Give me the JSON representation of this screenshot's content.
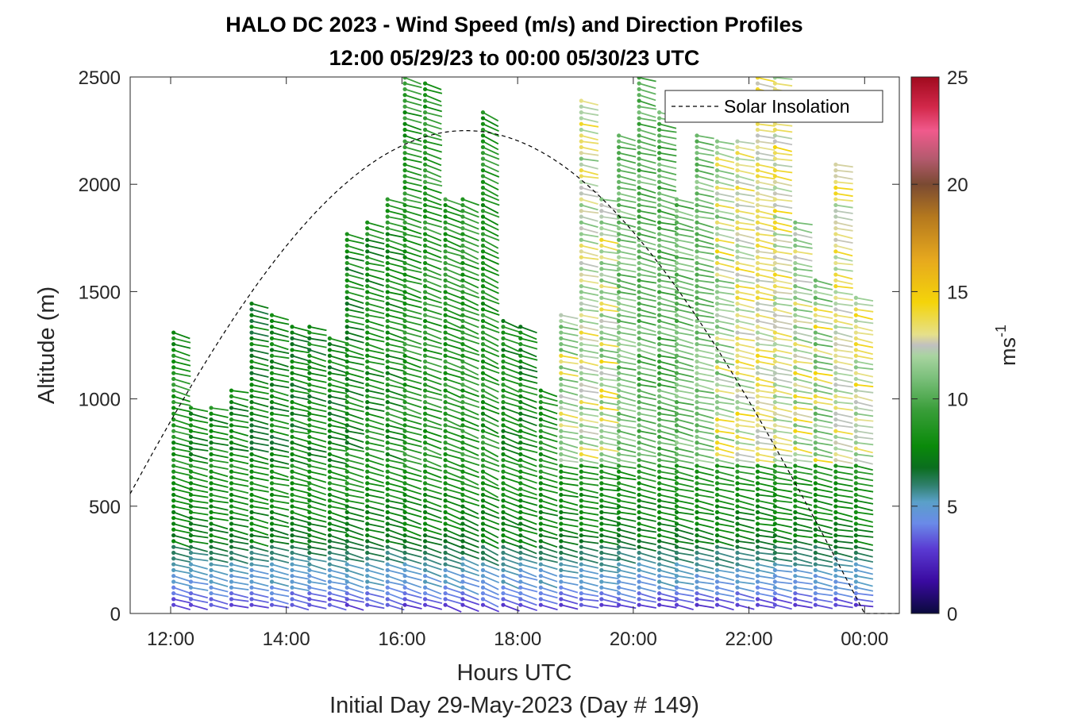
{
  "chart_data": {
    "type": "wind-barb-profile",
    "title_line1": "HALO DC 2023 - Wind Speed (m/s) and Direction Profiles",
    "title_line2": "12:00 05/29/23 to 00:00 05/30/23  UTC",
    "xlabel": "Hours UTC",
    "subtitle": "Initial Day 29-May-2023 (Day # 149)",
    "ylabel": "Altitude (m)",
    "xlim_hours": [
      11.3,
      24.6
    ],
    "ylim": [
      0,
      2500
    ],
    "x_ticks": [
      {
        "hour": 12,
        "label": "12:00"
      },
      {
        "hour": 14,
        "label": "14:00"
      },
      {
        "hour": 16,
        "label": "16:00"
      },
      {
        "hour": 18,
        "label": "18:00"
      },
      {
        "hour": 20,
        "label": "20:00"
      },
      {
        "hour": 22,
        "label": "22:00"
      },
      {
        "hour": 24,
        "label": "00:00"
      }
    ],
    "y_ticks": [
      0,
      500,
      1000,
      1500,
      2000,
      2500
    ],
    "legend": {
      "entry": "Solar Insolation",
      "position": "top-right"
    },
    "solar_insolation": {
      "peak_hour": 17.1,
      "peak_altitude": 2250,
      "zero_hour": 24.0
    },
    "colorbar": {
      "label": "ms",
      "label_superscript": "-1",
      "range": [
        0,
        25
      ],
      "ticks": [
        0,
        5,
        10,
        15,
        20,
        25
      ],
      "stops": [
        {
          "v": 0,
          "c": "#0a0a3c"
        },
        {
          "v": 1.5,
          "c": "#3a0aa0"
        },
        {
          "v": 3,
          "c": "#5a3ad2"
        },
        {
          "v": 4.2,
          "c": "#6a8ae8"
        },
        {
          "v": 5.2,
          "c": "#5aa0c8"
        },
        {
          "v": 6,
          "c": "#2f7f6a"
        },
        {
          "v": 6.8,
          "c": "#0a6e1e"
        },
        {
          "v": 7.8,
          "c": "#0a8a0a"
        },
        {
          "v": 9.5,
          "c": "#3a9e3a"
        },
        {
          "v": 11,
          "c": "#7cc07c"
        },
        {
          "v": 12,
          "c": "#a8d4a0"
        },
        {
          "v": 12.5,
          "c": "#c0c0c0"
        },
        {
          "v": 13,
          "c": "#e6e08a"
        },
        {
          "v": 14.5,
          "c": "#f4d40a"
        },
        {
          "v": 16.5,
          "c": "#e6a81e"
        },
        {
          "v": 18.5,
          "c": "#b4781e"
        },
        {
          "v": 20,
          "c": "#7a4a32"
        },
        {
          "v": 21.2,
          "c": "#b45a6e"
        },
        {
          "v": 22.5,
          "c": "#f05a8c"
        },
        {
          "v": 23.6,
          "c": "#d2284a"
        },
        {
          "v": 25,
          "c": "#a00a1e"
        }
      ]
    },
    "series": [
      {
        "hour": 12.05,
        "alt_max": 1330,
        "base_speed": 8.5,
        "dir_deg": 285
      },
      {
        "hour": 12.35,
        "alt_max": 970,
        "base_speed": 8.0,
        "dir_deg": 282
      },
      {
        "hour": 12.7,
        "alt_max": 960,
        "base_speed": 8.0,
        "dir_deg": 282
      },
      {
        "hour": 13.05,
        "alt_max": 1060,
        "base_speed": 7.8,
        "dir_deg": 282
      },
      {
        "hour": 13.4,
        "alt_max": 1460,
        "base_speed": 7.5,
        "dir_deg": 283
      },
      {
        "hour": 13.75,
        "alt_max": 1400,
        "base_speed": 7.5,
        "dir_deg": 283
      },
      {
        "hour": 14.1,
        "alt_max": 1360,
        "base_speed": 7.5,
        "dir_deg": 284
      },
      {
        "hour": 14.4,
        "alt_max": 1360,
        "base_speed": 7.6,
        "dir_deg": 284
      },
      {
        "hour": 14.75,
        "alt_max": 1290,
        "base_speed": 7.6,
        "dir_deg": 284
      },
      {
        "hour": 15.05,
        "alt_max": 1780,
        "base_speed": 7.8,
        "dir_deg": 285
      },
      {
        "hour": 15.4,
        "alt_max": 1840,
        "base_speed": 8.0,
        "dir_deg": 285
      },
      {
        "hour": 15.75,
        "alt_max": 1940,
        "base_speed": 8.2,
        "dir_deg": 286
      },
      {
        "hour": 16.05,
        "alt_max": 2500,
        "base_speed": 8.6,
        "dir_deg": 287
      },
      {
        "hour": 16.4,
        "alt_max": 2470,
        "base_speed": 8.8,
        "dir_deg": 288
      },
      {
        "hour": 16.75,
        "alt_max": 1950,
        "base_speed": 8.8,
        "dir_deg": 290
      },
      {
        "hour": 17.05,
        "alt_max": 1940,
        "base_speed": 8.8,
        "dir_deg": 292
      },
      {
        "hour": 17.4,
        "alt_max": 2360,
        "base_speed": 8.5,
        "dir_deg": 294
      },
      {
        "hour": 17.75,
        "alt_max": 1370,
        "base_speed": 8.0,
        "dir_deg": 290
      },
      {
        "hour": 18.05,
        "alt_max": 1360,
        "base_speed": 7.8,
        "dir_deg": 288
      },
      {
        "hour": 18.4,
        "alt_max": 1050,
        "base_speed": 8.5,
        "dir_deg": 286
      },
      {
        "hour": 18.75,
        "alt_max": 1400,
        "base_speed": 11.5,
        "dir_deg": 282
      },
      {
        "hour": 19.1,
        "alt_max": 2410,
        "base_speed": 12.0,
        "dir_deg": 281
      },
      {
        "hour": 19.45,
        "alt_max": 1940,
        "base_speed": 11.5,
        "dir_deg": 281
      },
      {
        "hour": 19.75,
        "alt_max": 2230,
        "base_speed": 10.8,
        "dir_deg": 282
      },
      {
        "hour": 20.1,
        "alt_max": 2500,
        "base_speed": 10.2,
        "dir_deg": 283
      },
      {
        "hour": 20.45,
        "alt_max": 2360,
        "base_speed": 10.0,
        "dir_deg": 283
      },
      {
        "hour": 20.75,
        "alt_max": 1940,
        "base_speed": 10.5,
        "dir_deg": 283
      },
      {
        "hour": 21.1,
        "alt_max": 2240,
        "base_speed": 11.0,
        "dir_deg": 282
      },
      {
        "hour": 21.45,
        "alt_max": 2200,
        "base_speed": 11.5,
        "dir_deg": 282
      },
      {
        "hour": 21.8,
        "alt_max": 2220,
        "base_speed": 12.5,
        "dir_deg": 281
      },
      {
        "hour": 22.15,
        "alt_max": 2500,
        "base_speed": 13.0,
        "dir_deg": 280
      },
      {
        "hour": 22.45,
        "alt_max": 2500,
        "base_speed": 12.5,
        "dir_deg": 280
      },
      {
        "hour": 22.8,
        "alt_max": 1830,
        "base_speed": 11.8,
        "dir_deg": 281
      },
      {
        "hour": 23.15,
        "alt_max": 1560,
        "base_speed": 11.2,
        "dir_deg": 282
      },
      {
        "hour": 23.5,
        "alt_max": 2100,
        "base_speed": 12.5,
        "dir_deg": 280
      },
      {
        "hour": 23.85,
        "alt_max": 1490,
        "base_speed": 12.0,
        "dir_deg": 280
      }
    ]
  }
}
